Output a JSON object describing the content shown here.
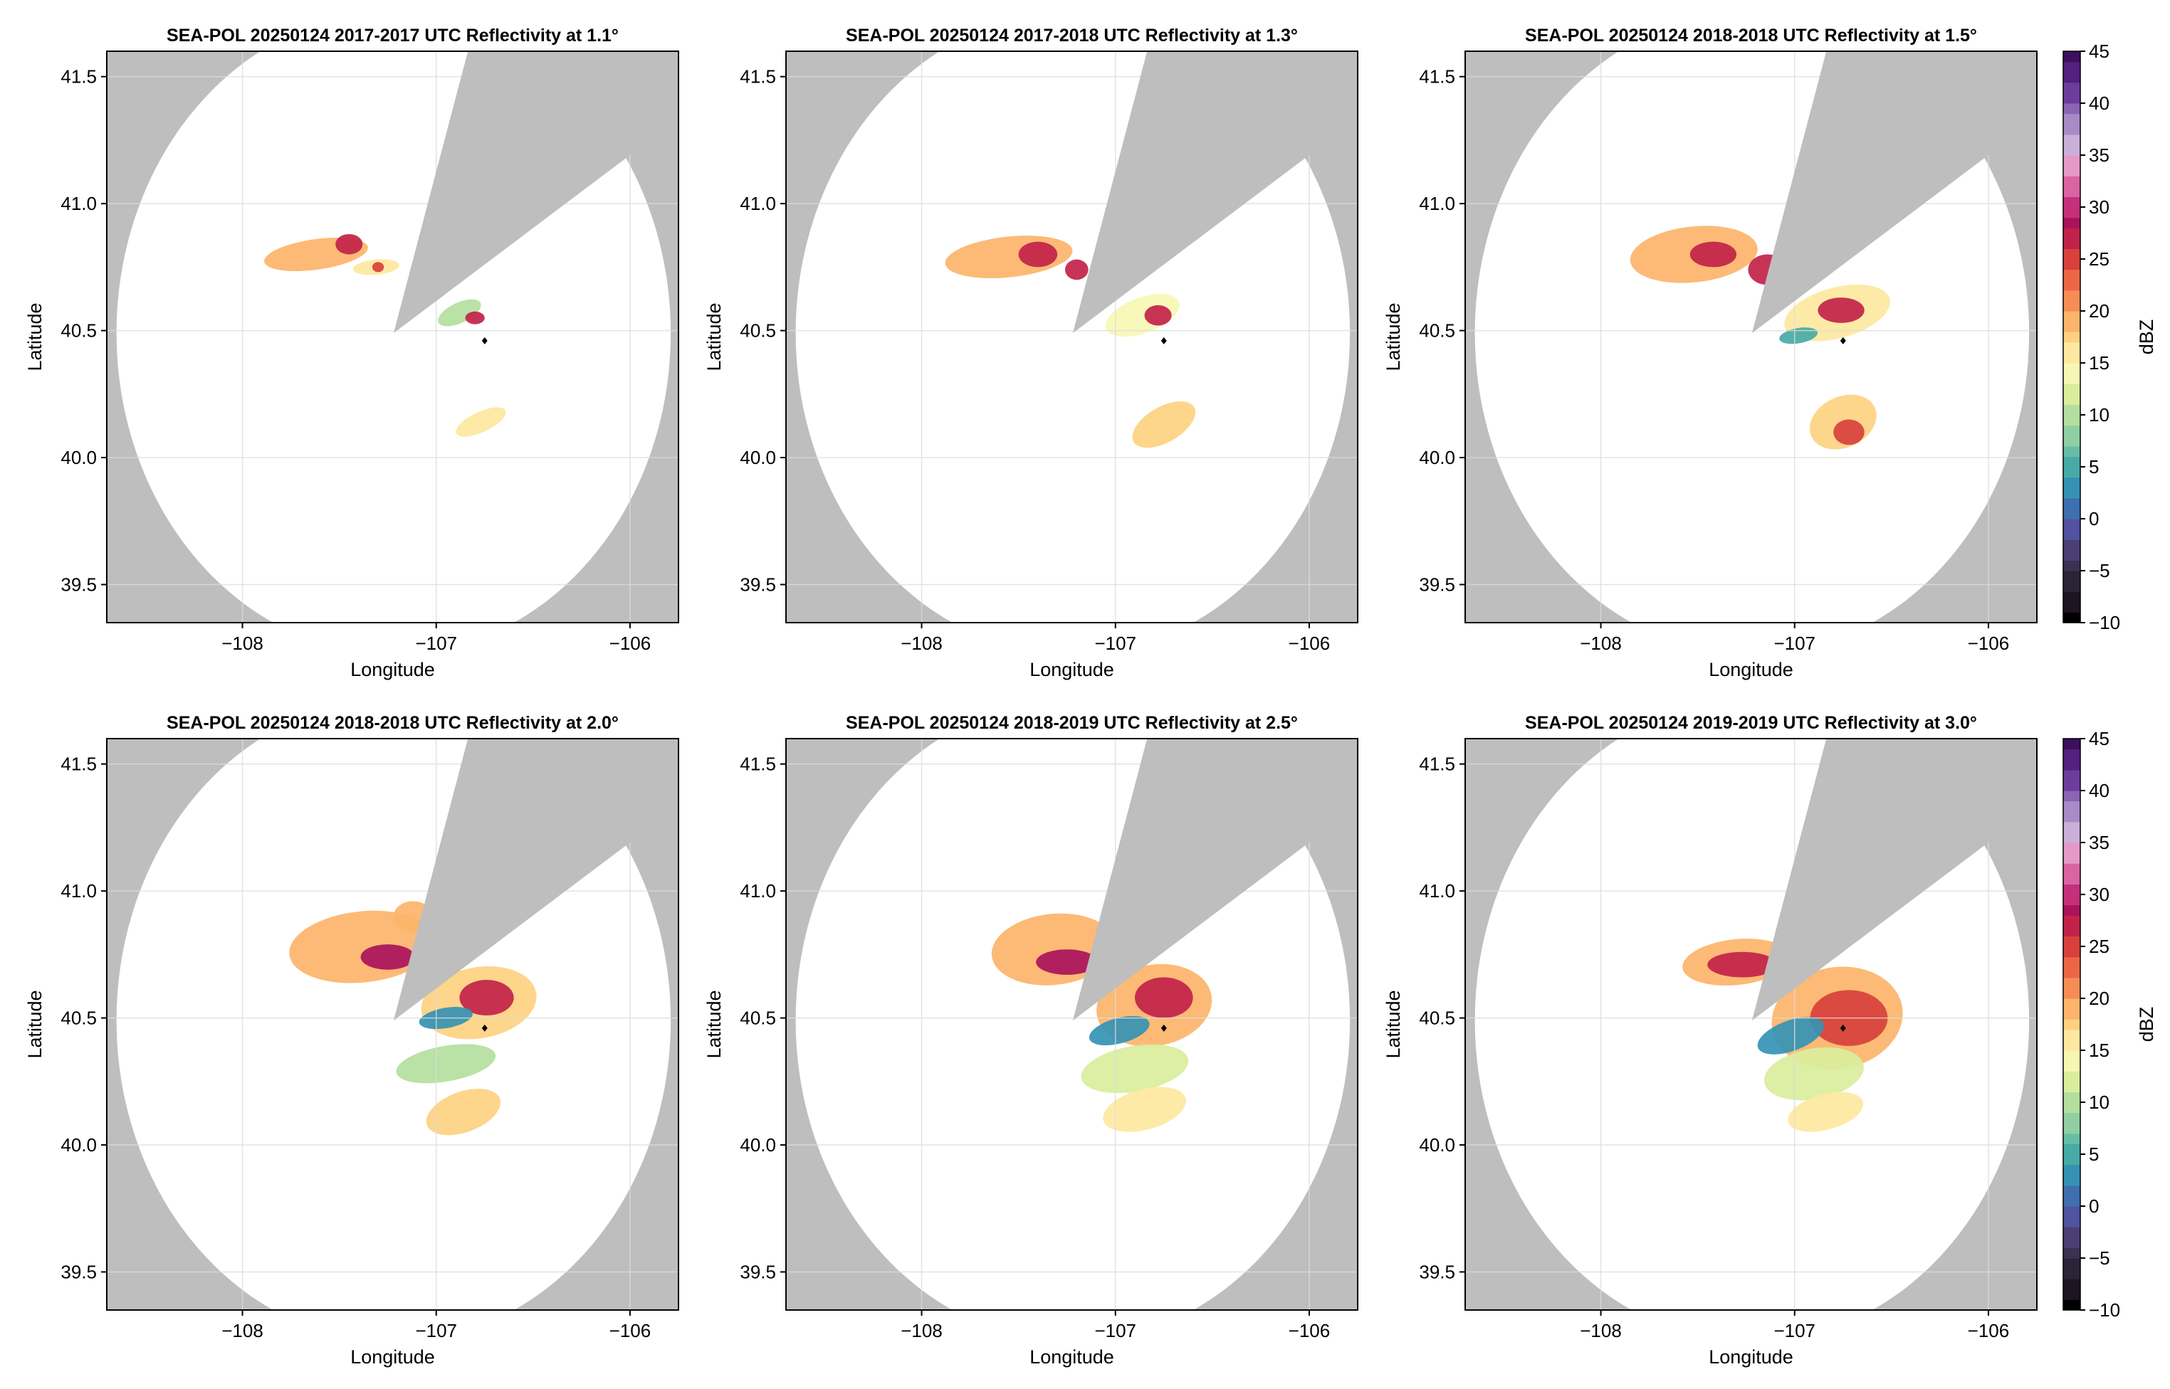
{
  "colors": {
    "masked": "#bebebe",
    "background": "#ffffff",
    "grid": "#dcdcdc",
    "axis": "#000000",
    "radar_site": "#000000",
    "colormap": [
      "#000000",
      "#1c1521",
      "#2b2438",
      "#3b3253",
      "#4a3f74",
      "#5152a0",
      "#3f6fb0",
      "#3592b4",
      "#47aaa6",
      "#66bfa4",
      "#8fcfa2",
      "#b4de9e",
      "#d9ee9c",
      "#f6f7b3",
      "#fee8a0",
      "#fdd181",
      "#fcb46a",
      "#f68d55",
      "#ec6646",
      "#d8403c",
      "#c22249",
      "#aa125c",
      "#c4307c",
      "#db62a3",
      "#e698c7",
      "#c9b0d8",
      "#a88ac7",
      "#8b64b4",
      "#6d3d9d",
      "#53207f",
      "#3d0f5f"
    ]
  },
  "chart_data": [
    {
      "type": "heatmap",
      "title": "SEA-POL 20250124 2017-2017 UTC Reflectivity at 1.1°",
      "xlabel": "Longitude",
      "ylabel": "Latitude",
      "xlim": [
        -108.7,
        -105.75
      ],
      "ylim": [
        39.35,
        41.6
      ],
      "xticks": [
        "−108",
        "−107",
        "−106"
      ],
      "yticks": [
        "39.5",
        "40.0",
        "40.5",
        "41.0",
        "41.5"
      ],
      "grid": true,
      "radar_site": {
        "lon": -107.22,
        "lat": 40.49
      },
      "range_circle_radius_deg": 1.43,
      "blocked_sector_deg": [
        17,
        57
      ],
      "marker": {
        "lon": -106.75,
        "lat": 40.46
      },
      "echoes": [
        {
          "lon": -107.62,
          "lat": 40.8,
          "rx": 0.27,
          "ry": 0.06,
          "dbz": 20,
          "rot": -8
        },
        {
          "lon": -107.45,
          "lat": 40.84,
          "rx": 0.07,
          "ry": 0.04,
          "dbz": 26,
          "rot": 0
        },
        {
          "lon": -107.31,
          "lat": 40.75,
          "rx": 0.12,
          "ry": 0.03,
          "dbz": 16,
          "rot": -5
        },
        {
          "lon": -107.3,
          "lat": 40.75,
          "rx": 0.03,
          "ry": 0.02,
          "dbz": 25,
          "rot": 0
        },
        {
          "lon": -106.88,
          "lat": 40.57,
          "rx": 0.12,
          "ry": 0.04,
          "dbz": 10,
          "rot": -25
        },
        {
          "lon": -106.8,
          "lat": 40.55,
          "rx": 0.05,
          "ry": 0.025,
          "dbz": 26,
          "rot": 0
        },
        {
          "lon": -106.77,
          "lat": 40.14,
          "rx": 0.14,
          "ry": 0.04,
          "dbz": 15,
          "rot": -25
        }
      ]
    },
    {
      "type": "heatmap",
      "title": "SEA-POL 20250124 2017-2018 UTC Reflectivity at 1.3°",
      "xlabel": "Longitude",
      "ylabel": "Latitude",
      "xlim": [
        -108.7,
        -105.75
      ],
      "ylim": [
        39.35,
        41.6
      ],
      "xticks": [
        "−108",
        "−107",
        "−106"
      ],
      "yticks": [
        "39.5",
        "40.0",
        "40.5",
        "41.0",
        "41.5"
      ],
      "grid": true,
      "radar_site": {
        "lon": -107.22,
        "lat": 40.49
      },
      "range_circle_radius_deg": 1.43,
      "blocked_sector_deg": [
        17,
        57
      ],
      "marker": {
        "lon": -106.75,
        "lat": 40.46
      },
      "echoes": [
        {
          "lon": -107.55,
          "lat": 40.79,
          "rx": 0.33,
          "ry": 0.08,
          "dbz": 19,
          "rot": -6
        },
        {
          "lon": -107.4,
          "lat": 40.8,
          "rx": 0.1,
          "ry": 0.05,
          "dbz": 26,
          "rot": 0
        },
        {
          "lon": -107.2,
          "lat": 40.74,
          "rx": 0.06,
          "ry": 0.04,
          "dbz": 27,
          "rot": 0
        },
        {
          "lon": -106.86,
          "lat": 40.56,
          "rx": 0.2,
          "ry": 0.07,
          "dbz": 14,
          "rot": -20
        },
        {
          "lon": -106.78,
          "lat": 40.56,
          "rx": 0.07,
          "ry": 0.04,
          "dbz": 27,
          "rot": 0
        },
        {
          "lon": -106.75,
          "lat": 40.13,
          "rx": 0.18,
          "ry": 0.07,
          "dbz": 17,
          "rot": -30
        }
      ]
    },
    {
      "type": "heatmap",
      "title": "SEA-POL 20250124 2018-2018 UTC Reflectivity at 1.5°",
      "xlabel": "Longitude",
      "ylabel": "Latitude",
      "xlim": [
        -108.7,
        -105.75
      ],
      "ylim": [
        39.35,
        41.6
      ],
      "xticks": [
        "−108",
        "−107",
        "−106"
      ],
      "yticks": [
        "39.5",
        "40.0",
        "40.5",
        "41.0",
        "41.5"
      ],
      "grid": true,
      "radar_site": {
        "lon": -107.22,
        "lat": 40.49
      },
      "range_circle_radius_deg": 1.43,
      "blocked_sector_deg": [
        17,
        57
      ],
      "marker": {
        "lon": -106.75,
        "lat": 40.46
      },
      "echoes": [
        {
          "lon": -107.52,
          "lat": 40.8,
          "rx": 0.33,
          "ry": 0.11,
          "dbz": 20,
          "rot": -6
        },
        {
          "lon": -107.42,
          "lat": 40.8,
          "rx": 0.12,
          "ry": 0.05,
          "dbz": 27,
          "rot": 0
        },
        {
          "lon": -107.14,
          "lat": 40.74,
          "rx": 0.1,
          "ry": 0.06,
          "dbz": 27,
          "rot": 0
        },
        {
          "lon": -106.78,
          "lat": 40.57,
          "rx": 0.28,
          "ry": 0.1,
          "dbz": 16,
          "rot": -15
        },
        {
          "lon": -106.76,
          "lat": 40.58,
          "rx": 0.12,
          "ry": 0.05,
          "dbz": 27,
          "rot": 0
        },
        {
          "lon": -106.98,
          "lat": 40.48,
          "rx": 0.1,
          "ry": 0.03,
          "dbz": 4,
          "rot": -10
        },
        {
          "lon": -106.75,
          "lat": 40.14,
          "rx": 0.18,
          "ry": 0.1,
          "dbz": 18,
          "rot": -25
        },
        {
          "lon": -106.72,
          "lat": 40.1,
          "rx": 0.08,
          "ry": 0.05,
          "dbz": 24,
          "rot": 0
        }
      ]
    },
    {
      "type": "heatmap",
      "title": "SEA-POL 20250124 2018-2018 UTC Reflectivity at 2.0°",
      "xlabel": "Longitude",
      "ylabel": "Latitude",
      "xlim": [
        -108.7,
        -105.75
      ],
      "ylim": [
        39.35,
        41.6
      ],
      "xticks": [
        "−108",
        "−107",
        "−106"
      ],
      "yticks": [
        "39.5",
        "40.0",
        "40.5",
        "41.0",
        "41.5"
      ],
      "grid": true,
      "radar_site": {
        "lon": -107.22,
        "lat": 40.49
      },
      "range_circle_radius_deg": 1.43,
      "blocked_sector_deg": [
        17,
        57
      ],
      "marker": {
        "lon": -106.75,
        "lat": 40.46
      },
      "echoes": [
        {
          "lon": -107.38,
          "lat": 40.78,
          "rx": 0.38,
          "ry": 0.14,
          "dbz": 19,
          "rot": -6
        },
        {
          "lon": -107.25,
          "lat": 40.74,
          "rx": 0.14,
          "ry": 0.05,
          "dbz": 28,
          "rot": 0
        },
        {
          "lon": -107.12,
          "lat": 40.9,
          "rx": 0.1,
          "ry": 0.06,
          "dbz": 20,
          "rot": 0
        },
        {
          "lon": -106.78,
          "lat": 40.56,
          "rx": 0.3,
          "ry": 0.14,
          "dbz": 18,
          "rot": -10
        },
        {
          "lon": -106.74,
          "lat": 40.58,
          "rx": 0.14,
          "ry": 0.07,
          "dbz": 26,
          "rot": 0
        },
        {
          "lon": -106.95,
          "lat": 40.5,
          "rx": 0.14,
          "ry": 0.04,
          "dbz": 3,
          "rot": -10
        },
        {
          "lon": -106.95,
          "lat": 40.32,
          "rx": 0.26,
          "ry": 0.07,
          "dbz": 10,
          "rot": -10
        },
        {
          "lon": -106.86,
          "lat": 40.13,
          "rx": 0.2,
          "ry": 0.08,
          "dbz": 17,
          "rot": -20
        }
      ]
    },
    {
      "type": "heatmap",
      "title": "SEA-POL 20250124 2018-2019 UTC Reflectivity at 2.5°",
      "xlabel": "Longitude",
      "ylabel": "Latitude",
      "xlim": [
        -108.7,
        -105.75
      ],
      "ylim": [
        39.35,
        41.6
      ],
      "xticks": [
        "−108",
        "−107",
        "−106"
      ],
      "yticks": [
        "39.5",
        "40.0",
        "40.5",
        "41.0",
        "41.5"
      ],
      "grid": true,
      "radar_site": {
        "lon": -107.22,
        "lat": 40.49
      },
      "range_circle_radius_deg": 1.43,
      "blocked_sector_deg": [
        17,
        57
      ],
      "marker": {
        "lon": -106.75,
        "lat": 40.46
      },
      "echoes": [
        {
          "lon": -107.32,
          "lat": 40.77,
          "rx": 0.32,
          "ry": 0.14,
          "dbz": 19,
          "rot": -6
        },
        {
          "lon": -107.25,
          "lat": 40.72,
          "rx": 0.16,
          "ry": 0.05,
          "dbz": 28,
          "rot": 0
        },
        {
          "lon": -106.8,
          "lat": 40.55,
          "rx": 0.3,
          "ry": 0.16,
          "dbz": 19,
          "rot": -10
        },
        {
          "lon": -106.75,
          "lat": 40.58,
          "rx": 0.15,
          "ry": 0.08,
          "dbz": 27,
          "rot": 0
        },
        {
          "lon": -106.98,
          "lat": 40.45,
          "rx": 0.16,
          "ry": 0.05,
          "dbz": 3,
          "rot": -15
        },
        {
          "lon": -106.9,
          "lat": 40.3,
          "rx": 0.28,
          "ry": 0.09,
          "dbz": 12,
          "rot": -10
        },
        {
          "lon": -106.85,
          "lat": 40.14,
          "rx": 0.22,
          "ry": 0.08,
          "dbz": 16,
          "rot": -15
        }
      ]
    },
    {
      "type": "heatmap",
      "title": "SEA-POL 20250124 2019-2019 UTC Reflectivity at 3.0°",
      "xlabel": "Longitude",
      "ylabel": "Latitude",
      "xlim": [
        -108.7,
        -105.75
      ],
      "ylim": [
        39.35,
        41.6
      ],
      "xticks": [
        "−108",
        "−107",
        "−106"
      ],
      "yticks": [
        "39.5",
        "40.0",
        "40.5",
        "41.0",
        "41.5"
      ],
      "grid": true,
      "radar_site": {
        "lon": -107.22,
        "lat": 40.49
      },
      "range_circle_radius_deg": 1.43,
      "blocked_sector_deg": [
        17,
        57
      ],
      "marker": {
        "lon": -106.75,
        "lat": 40.46
      },
      "echoes": [
        {
          "lon": -107.3,
          "lat": 40.72,
          "rx": 0.28,
          "ry": 0.09,
          "dbz": 20,
          "rot": -6
        },
        {
          "lon": -107.27,
          "lat": 40.71,
          "rx": 0.18,
          "ry": 0.05,
          "dbz": 27,
          "rot": 0
        },
        {
          "lon": -106.78,
          "lat": 40.5,
          "rx": 0.34,
          "ry": 0.2,
          "dbz": 19,
          "rot": -10
        },
        {
          "lon": -106.72,
          "lat": 40.5,
          "rx": 0.2,
          "ry": 0.11,
          "dbz": 24,
          "rot": 0
        },
        {
          "lon": -107.02,
          "lat": 40.43,
          "rx": 0.18,
          "ry": 0.06,
          "dbz": 2,
          "rot": -20
        },
        {
          "lon": -106.9,
          "lat": 40.28,
          "rx": 0.26,
          "ry": 0.1,
          "dbz": 12,
          "rot": -10
        },
        {
          "lon": -106.84,
          "lat": 40.13,
          "rx": 0.2,
          "ry": 0.07,
          "dbz": 15,
          "rot": -15
        }
      ]
    }
  ],
  "colorbars": [
    {
      "label": "dBZ",
      "range": [
        -10,
        45
      ],
      "ticks": [
        "45",
        "40",
        "35",
        "30",
        "25",
        "20",
        "15",
        "10",
        "5",
        "0",
        "−5",
        "−10"
      ]
    },
    {
      "label": "dBZ",
      "range": [
        -10,
        45
      ],
      "ticks": [
        "45",
        "40",
        "35",
        "30",
        "25",
        "20",
        "15",
        "10",
        "5",
        "0",
        "−5",
        "−10"
      ]
    }
  ]
}
